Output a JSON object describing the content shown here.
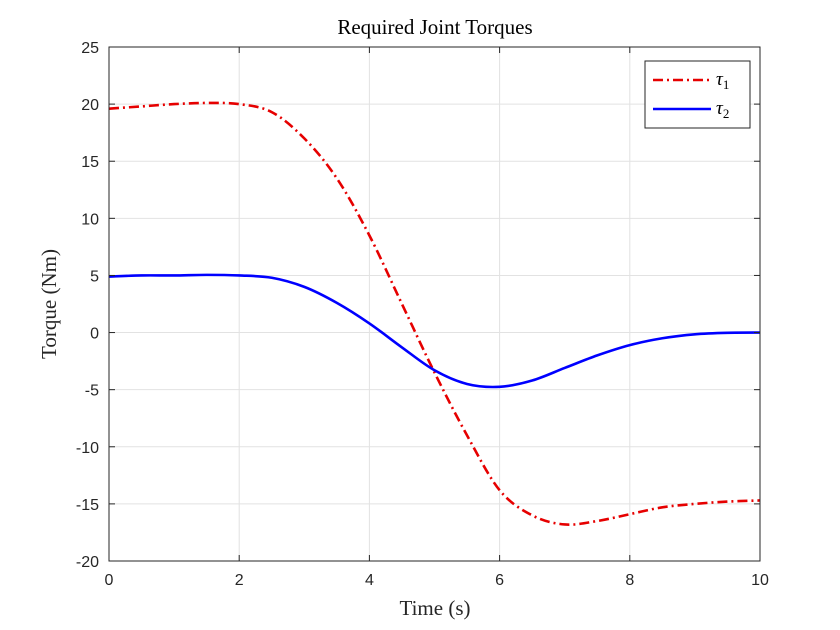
{
  "chart_data": {
    "type": "line",
    "title": "Required Joint Torques",
    "xlabel": "Time (s)",
    "ylabel": "Torque (Nm)",
    "xlim": [
      0,
      10
    ],
    "ylim": [
      -20,
      25
    ],
    "xticks": [
      0,
      2,
      4,
      6,
      8,
      10
    ],
    "yticks": [
      -20,
      -15,
      -10,
      -5,
      0,
      5,
      10,
      15,
      20,
      25
    ],
    "grid": true,
    "legend_position": "top-right",
    "x": [
      0,
      0.5,
      1,
      1.5,
      2,
      2.5,
      3,
      3.5,
      4,
      4.5,
      5,
      5.5,
      6,
      6.5,
      7,
      7.5,
      8,
      8.5,
      9,
      9.5,
      10
    ],
    "series": [
      {
        "name": "τ",
        "subscript": "1",
        "color": "#e60000",
        "style": "dash-dot",
        "values": [
          19.6,
          19.8,
          20.0,
          20.1,
          20.0,
          19.3,
          17.0,
          13.5,
          8.5,
          2.5,
          -3.5,
          -9.0,
          -13.8,
          -16.0,
          -16.8,
          -16.5,
          -15.9,
          -15.3,
          -15.0,
          -14.8,
          -14.7
        ]
      },
      {
        "name": "τ",
        "subscript": "2",
        "color": "#0000ff",
        "style": "solid",
        "values": [
          4.9,
          5.0,
          5.0,
          5.05,
          5.0,
          4.8,
          4.0,
          2.6,
          0.8,
          -1.3,
          -3.3,
          -4.5,
          -4.75,
          -4.2,
          -3.1,
          -2.0,
          -1.1,
          -0.5,
          -0.15,
          -0.02,
          0.0
        ]
      }
    ]
  }
}
